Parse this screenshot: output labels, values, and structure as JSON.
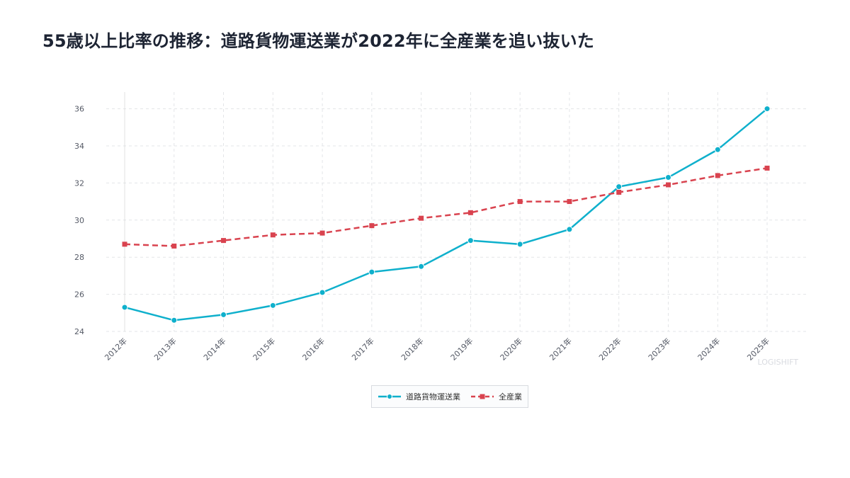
{
  "title": "55歳以上比率の推移：道路貨物運送業が2022年に全産業を追い抜いた",
  "watermark": "LOGISHIFT",
  "colors": {
    "series1": "#0fb0cc",
    "series2": "#d9434f",
    "grid": "#e3e5e8",
    "axis": "#e0e0e0"
  },
  "chart_data": {
    "type": "line",
    "title": "55歳以上比率の推移：道路貨物運送業が2022年に全産業を追い抜いた",
    "xlabel": "",
    "ylabel": "",
    "categories": [
      "2012年",
      "2013年",
      "2014年",
      "2015年",
      "2016年",
      "2017年",
      "2018年",
      "2019年",
      "2020年",
      "2021年",
      "2022年",
      "2023年",
      "2024年",
      "2025年"
    ],
    "ylim": [
      24,
      36.9
    ],
    "yticks": [
      24,
      26,
      28,
      30,
      32,
      34,
      36
    ],
    "grid": true,
    "legend_position": "bottom-center",
    "series": [
      {
        "name": "道路貨物運送業",
        "style": "solid",
        "marker": "circle",
        "values": [
          25.3,
          24.6,
          24.9,
          25.4,
          26.1,
          27.2,
          27.5,
          28.9,
          28.7,
          29.5,
          31.8,
          32.3,
          33.8,
          36.0
        ]
      },
      {
        "name": "全産業",
        "style": "dashed",
        "marker": "square",
        "values": [
          28.7,
          28.6,
          28.9,
          29.2,
          29.3,
          29.7,
          30.1,
          30.4,
          31.0,
          31.0,
          31.5,
          31.9,
          32.4,
          32.8
        ]
      }
    ]
  }
}
